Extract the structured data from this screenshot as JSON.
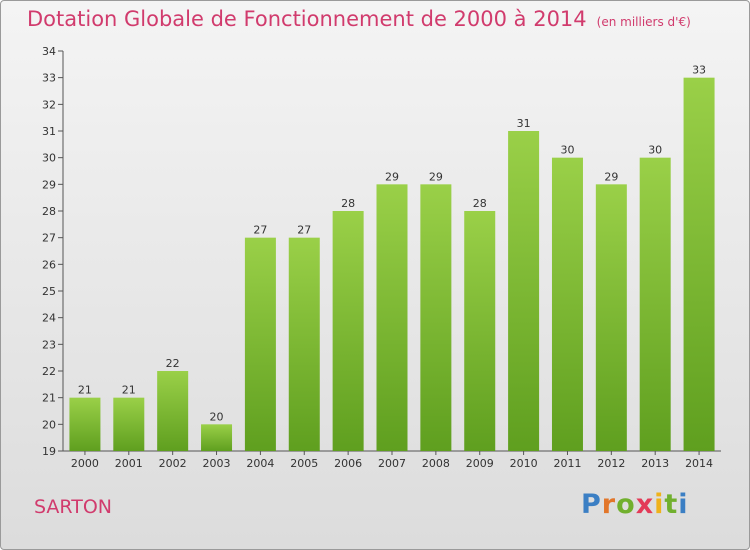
{
  "title": "Dotation Globale de Fonctionnement de 2000 à 2014",
  "unit_note": "(en milliers d'€)",
  "commune": "SARTON",
  "logo": {
    "letters": [
      "P",
      "r",
      "o",
      "x",
      "i",
      "t",
      "i"
    ]
  },
  "colors": {
    "bar": "#7cbf3a",
    "bar_dark": "#5e9e22",
    "title": "#d13b6d"
  },
  "chart_data": {
    "type": "bar",
    "title": "Dotation Globale de Fonctionnement de 2000 à 2014",
    "subtitle": "(en milliers d'€)",
    "categories": [
      "2000",
      "2001",
      "2002",
      "2003",
      "2004",
      "2005",
      "2006",
      "2007",
      "2008",
      "2009",
      "2010",
      "2011",
      "2012",
      "2013",
      "2014"
    ],
    "values": [
      21,
      21,
      22,
      20,
      27,
      27,
      28,
      29,
      29,
      28,
      31,
      30,
      29,
      30,
      33
    ],
    "ylim": [
      19,
      34
    ],
    "yticks": [
      19,
      20,
      21,
      22,
      23,
      24,
      25,
      26,
      27,
      28,
      29,
      30,
      31,
      32,
      33,
      34
    ],
    "grid": false,
    "xlabel": "",
    "ylabel": ""
  }
}
